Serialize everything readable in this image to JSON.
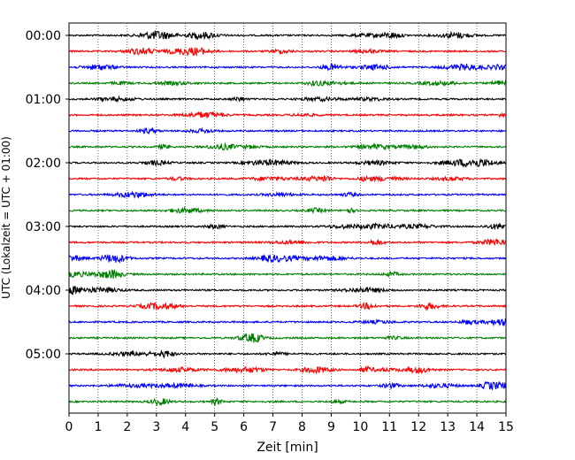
{
  "chart_data": {
    "type": "line",
    "subtype": "helicorder",
    "title": "",
    "xlabel": "Zeit  [min]",
    "ylabel": "UTC (Lokalzeit = UTC + 01:00)",
    "xlim": [
      0,
      15
    ],
    "x_ticks": [
      "0",
      "1",
      "2",
      "3",
      "4",
      "5",
      "6",
      "7",
      "8",
      "9",
      "10",
      "11",
      "12",
      "13",
      "14",
      "15"
    ],
    "y_ticks": [
      {
        "label": "00:00",
        "row": 0
      },
      {
        "label": "01:00",
        "row": 4
      },
      {
        "label": "02:00",
        "row": 8
      },
      {
        "label": "03:00",
        "row": 12
      },
      {
        "label": "04:00",
        "row": 16
      },
      {
        "label": "05:00",
        "row": 20
      }
    ],
    "row_minutes": 15,
    "rows": 24,
    "row_colors": [
      "#000000",
      "#ff0000",
      "#0000ff",
      "#008000"
    ],
    "vertical_grid": "dotted",
    "legend": "none",
    "series": []
  }
}
